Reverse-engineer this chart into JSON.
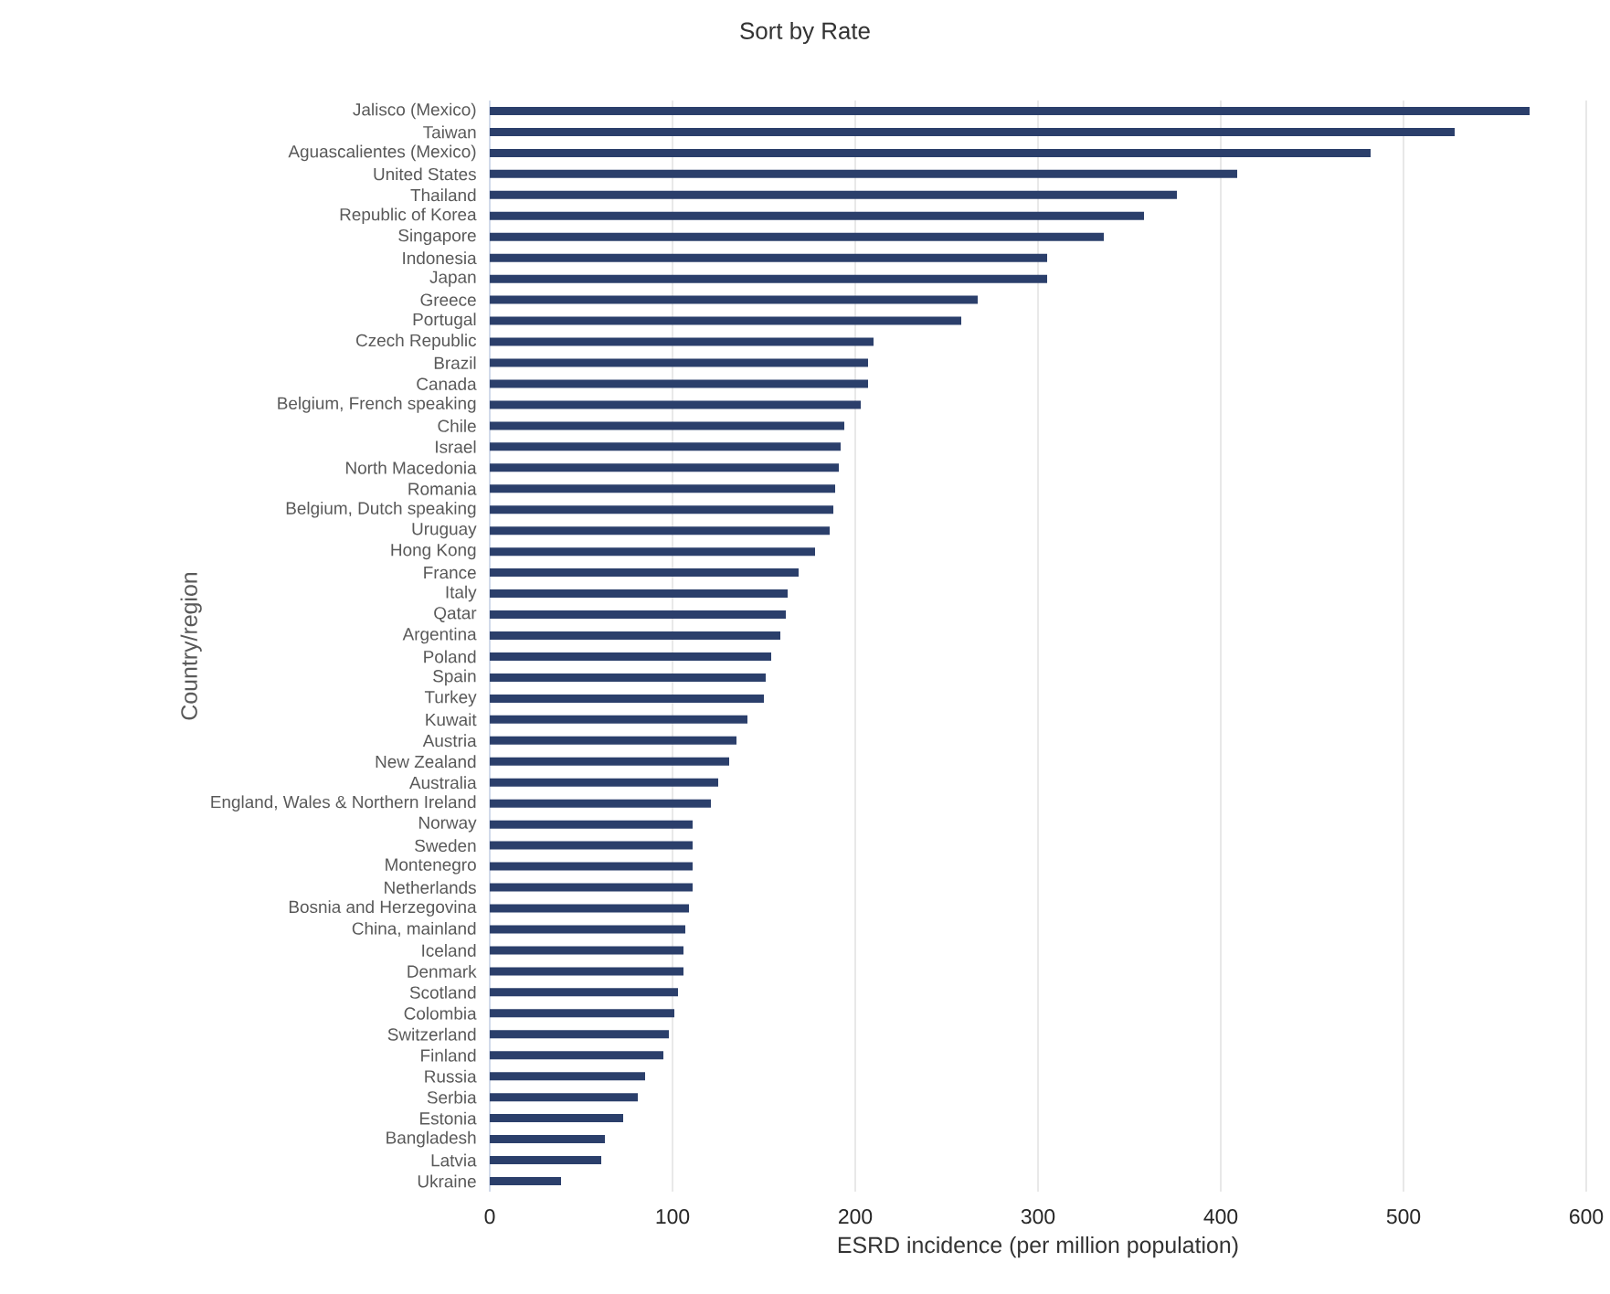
{
  "chart_data": {
    "type": "bar",
    "orientation": "horizontal",
    "title": "Sort by Rate",
    "xlabel": "ESRD incidence (per million population)",
    "ylabel": "Country/region",
    "categories": [
      "Jalisco (Mexico)",
      "Taiwan",
      "Aguascalientes (Mexico)",
      "United States",
      "Thailand",
      "Republic of Korea",
      "Singapore",
      "Indonesia",
      "Japan",
      "Greece",
      "Portugal",
      "Czech Republic",
      "Brazil",
      "Canada",
      "Belgium, French speaking",
      "Chile",
      "Israel",
      "North Macedonia",
      "Romania",
      "Belgium, Dutch speaking",
      "Uruguay",
      "Hong Kong",
      "France",
      "Italy",
      "Qatar",
      "Argentina",
      "Poland",
      "Spain",
      "Turkey",
      "Kuwait",
      "Austria",
      "New Zealand",
      "Australia",
      "England, Wales & Northern Ireland",
      "Norway",
      "Sweden",
      "Montenegro",
      "Netherlands",
      "Bosnia and Herzegovina",
      "China, mainland",
      "Iceland",
      "Denmark",
      "Scotland",
      "Colombia",
      "Switzerland",
      "Finland",
      "Russia",
      "Serbia",
      "Estonia",
      "Bangladesh",
      "Latvia",
      "Ukraine"
    ],
    "values": [
      569,
      528,
      482,
      409,
      376,
      358,
      336,
      305,
      305,
      267,
      258,
      210,
      207,
      207,
      203,
      194,
      192,
      191,
      189,
      188,
      186,
      178,
      169,
      163,
      162,
      159,
      154,
      151,
      150,
      141,
      135,
      131,
      125,
      121,
      111,
      111,
      111,
      111,
      109,
      107,
      106,
      106,
      103,
      101,
      98,
      95,
      85,
      81,
      73,
      63,
      61,
      39
    ],
    "color": "#2b3f6b",
    "xlim": [
      0,
      600
    ],
    "xticks": [
      0,
      100,
      200,
      300,
      400,
      500,
      600
    ],
    "grid": "x"
  }
}
